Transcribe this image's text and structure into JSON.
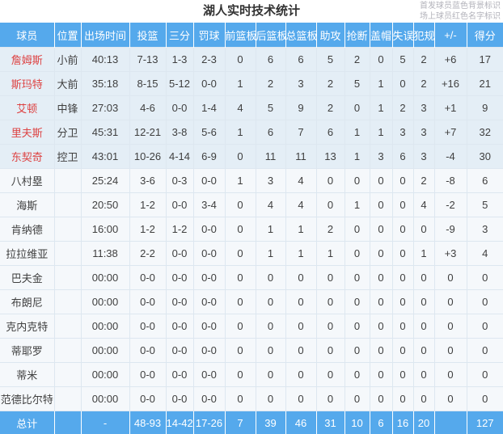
{
  "title": "湖人实时技术统计",
  "legend": {
    "line1": "首发球员蓝色背景标识",
    "line2": "场上球员红色名字标识"
  },
  "colors": {
    "header_blue": "#55a9ec",
    "starter_row_bg": "#e4eef6",
    "row_bg": "#f5f8fb",
    "on_court_name_red": "#dd4343",
    "header_text": "#ffffff"
  },
  "table": {
    "columns": [
      {
        "id": "player",
        "label": "球员"
      },
      {
        "id": "position",
        "label": "位置"
      },
      {
        "id": "minutes",
        "label": "出场时间"
      },
      {
        "id": "fg",
        "label": "投篮"
      },
      {
        "id": "three",
        "label": "三分"
      },
      {
        "id": "ft",
        "label": "罚球"
      },
      {
        "id": "oreb",
        "label": "前篮板"
      },
      {
        "id": "dreb",
        "label": "后篮板"
      },
      {
        "id": "treb",
        "label": "总篮板"
      },
      {
        "id": "ast",
        "label": "助攻"
      },
      {
        "id": "stl",
        "label": "抢断"
      },
      {
        "id": "blk",
        "label": "盖帽"
      },
      {
        "id": "to",
        "label": "失误"
      },
      {
        "id": "pf",
        "label": "犯规"
      },
      {
        "id": "plusminus",
        "label": "+/-"
      },
      {
        "id": "pts",
        "label": "得分"
      }
    ],
    "players": [
      {
        "name": "詹姆斯",
        "position": "小前",
        "starter": true,
        "on_court": true,
        "stats": [
          "40:13",
          "7-13",
          "1-3",
          "2-3",
          "0",
          "6",
          "6",
          "5",
          "2",
          "0",
          "5",
          "2",
          "+6",
          "17"
        ]
      },
      {
        "name": "斯玛特",
        "position": "大前",
        "starter": true,
        "on_court": true,
        "stats": [
          "35:18",
          "8-15",
          "5-12",
          "0-0",
          "1",
          "2",
          "3",
          "2",
          "5",
          "1",
          "0",
          "2",
          "+16",
          "21"
        ]
      },
      {
        "name": "艾顿",
        "position": "中锋",
        "starter": true,
        "on_court": true,
        "stats": [
          "27:03",
          "4-6",
          "0-0",
          "1-4",
          "4",
          "5",
          "9",
          "2",
          "0",
          "1",
          "2",
          "3",
          "+1",
          "9"
        ]
      },
      {
        "name": "里夫斯",
        "position": "分卫",
        "starter": true,
        "on_court": true,
        "stats": [
          "45:31",
          "12-21",
          "3-8",
          "5-6",
          "1",
          "6",
          "7",
          "6",
          "1",
          "1",
          "3",
          "3",
          "+7",
          "32"
        ]
      },
      {
        "name": "东契奇",
        "position": "控卫",
        "starter": true,
        "on_court": true,
        "stats": [
          "43:01",
          "10-26",
          "4-14",
          "6-9",
          "0",
          "11",
          "11",
          "13",
          "1",
          "3",
          "6",
          "3",
          "-4",
          "30"
        ]
      },
      {
        "name": "八村塁",
        "position": "",
        "starter": false,
        "on_court": false,
        "stats": [
          "25:24",
          "3-6",
          "0-3",
          "0-0",
          "1",
          "3",
          "4",
          "0",
          "0",
          "0",
          "0",
          "2",
          "-8",
          "6"
        ]
      },
      {
        "name": "海斯",
        "position": "",
        "starter": false,
        "on_court": false,
        "stats": [
          "20:50",
          "1-2",
          "0-0",
          "3-4",
          "0",
          "4",
          "4",
          "0",
          "1",
          "0",
          "0",
          "4",
          "-2",
          "5"
        ]
      },
      {
        "name": "肯纳德",
        "position": "",
        "starter": false,
        "on_court": false,
        "stats": [
          "16:00",
          "1-2",
          "1-2",
          "0-0",
          "0",
          "1",
          "1",
          "2",
          "0",
          "0",
          "0",
          "0",
          "-9",
          "3"
        ]
      },
      {
        "name": "拉拉维亚",
        "position": "",
        "starter": false,
        "on_court": false,
        "stats": [
          "11:38",
          "2-2",
          "0-0",
          "0-0",
          "0",
          "1",
          "1",
          "1",
          "0",
          "0",
          "0",
          "1",
          "+3",
          "4"
        ]
      },
      {
        "name": "巴夫金",
        "position": "",
        "starter": false,
        "on_court": false,
        "stats": [
          "00:00",
          "0-0",
          "0-0",
          "0-0",
          "0",
          "0",
          "0",
          "0",
          "0",
          "0",
          "0",
          "0",
          "0",
          "0"
        ]
      },
      {
        "name": "布朗尼",
        "position": "",
        "starter": false,
        "on_court": false,
        "stats": [
          "00:00",
          "0-0",
          "0-0",
          "0-0",
          "0",
          "0",
          "0",
          "0",
          "0",
          "0",
          "0",
          "0",
          "0",
          "0"
        ]
      },
      {
        "name": "克内克特",
        "position": "",
        "starter": false,
        "on_court": false,
        "stats": [
          "00:00",
          "0-0",
          "0-0",
          "0-0",
          "0",
          "0",
          "0",
          "0",
          "0",
          "0",
          "0",
          "0",
          "0",
          "0"
        ]
      },
      {
        "name": "蒂耶罗",
        "position": "",
        "starter": false,
        "on_court": false,
        "stats": [
          "00:00",
          "0-0",
          "0-0",
          "0-0",
          "0",
          "0",
          "0",
          "0",
          "0",
          "0",
          "0",
          "0",
          "0",
          "0"
        ]
      },
      {
        "name": "蒂米",
        "position": "",
        "starter": false,
        "on_court": false,
        "stats": [
          "00:00",
          "0-0",
          "0-0",
          "0-0",
          "0",
          "0",
          "0",
          "0",
          "0",
          "0",
          "0",
          "0",
          "0",
          "0"
        ]
      },
      {
        "name": "范德比尔特",
        "position": "",
        "starter": false,
        "on_court": false,
        "stats": [
          "00:00",
          "0-0",
          "0-0",
          "0-0",
          "0",
          "0",
          "0",
          "0",
          "0",
          "0",
          "0",
          "0",
          "0",
          "0"
        ]
      }
    ],
    "total": {
      "label": "总计",
      "position": "",
      "stats": [
        "-",
        "48-93",
        "14-42",
        "17-26",
        "7",
        "39",
        "46",
        "31",
        "10",
        "6",
        "16",
        "20",
        "",
        "127"
      ]
    }
  }
}
